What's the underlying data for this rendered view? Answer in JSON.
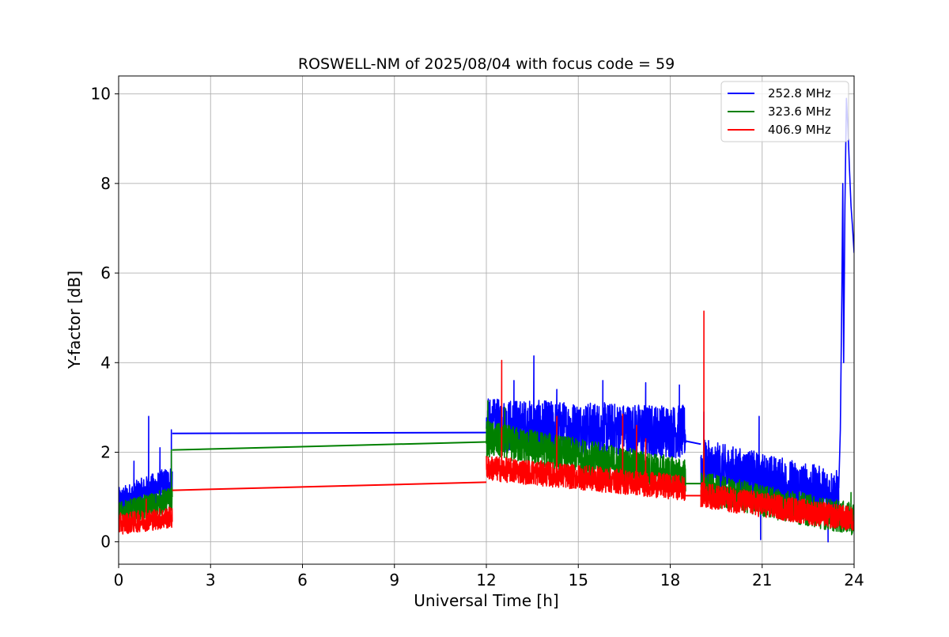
{
  "chart_data": {
    "type": "line",
    "title": "ROSWELL-NM of 2025/08/04 with focus code = 59",
    "xlabel": "Universal Time [h]",
    "ylabel": "Y-factor [dB]",
    "xlim": [
      0,
      24
    ],
    "ylim": [
      -0.5,
      10.4
    ],
    "xticks": [
      "0",
      "3",
      "6",
      "9",
      "12",
      "15",
      "18",
      "21",
      "24"
    ],
    "yticks": [
      "0",
      "2",
      "4",
      "6",
      "8",
      "10"
    ],
    "grid": true,
    "legend_position": "top-right",
    "series": [
      {
        "name": "252.8 MHz",
        "color": "#0000ff",
        "segments": [
          {
            "x_start": 0.0,
            "x_end": 1.75,
            "base_start": 0.85,
            "base_end": 1.35,
            "noise": 0.45,
            "spikes": [
              [
                0.98,
                2.8
              ],
              [
                0.5,
                1.8
              ],
              [
                1.35,
                2.1
              ],
              [
                1.72,
                2.5
              ]
            ]
          },
          {
            "x_start": 12.0,
            "x_end": 18.5,
            "base_start": 2.6,
            "base_end": 2.45,
            "noise": 0.75,
            "spikes": [
              [
                13.55,
                4.15
              ],
              [
                12.9,
                3.6
              ],
              [
                15.8,
                3.6
              ],
              [
                17.2,
                3.55
              ],
              [
                14.3,
                3.4
              ],
              [
                18.3,
                3.5
              ]
            ]
          },
          {
            "x_start": 19.0,
            "x_end": 23.5,
            "base_start": 1.7,
            "base_end": 1.0,
            "noise": 0.75,
            "spikes": [
              [
                20.9,
                2.8
              ],
              [
                19.1,
                2.9
              ],
              [
                20.95,
                0.05
              ],
              [
                23.15,
                0.0
              ]
            ]
          },
          {
            "x_start": 23.5,
            "x_end": 24.0,
            "points": [
              [
                23.5,
                1.2
              ],
              [
                23.55,
                2.5
              ],
              [
                23.6,
                5.5
              ],
              [
                23.63,
                8.0
              ],
              [
                23.66,
                4.0
              ],
              [
                23.7,
                7.5
              ],
              [
                23.75,
                9.9
              ],
              [
                23.8,
                9.2
              ],
              [
                23.85,
                8.3
              ],
              [
                23.9,
                7.5
              ],
              [
                23.95,
                7.0
              ],
              [
                24.0,
                6.45
              ]
            ]
          }
        ],
        "connectors": [
          [
            [
              1.75,
              2.42
            ],
            [
              12.0,
              2.44
            ]
          ],
          [
            [
              18.5,
              2.25
            ],
            [
              19.0,
              2.18
            ]
          ]
        ]
      },
      {
        "name": "323.6 MHz",
        "color": "#008000",
        "segments": [
          {
            "x_start": 0.0,
            "x_end": 1.75,
            "base_start": 0.6,
            "base_end": 0.95,
            "noise": 0.35,
            "spikes": [
              [
                1.72,
                2.05
              ]
            ]
          },
          {
            "x_start": 12.0,
            "x_end": 18.5,
            "base_start": 2.3,
            "base_end": 1.45,
            "noise": 0.5,
            "spikes": [
              [
                12.05,
                3.15
              ],
              [
                12.6,
                3.0
              ]
            ]
          },
          {
            "x_start": 19.0,
            "x_end": 24.0,
            "base_start": 1.2,
            "base_end": 0.5,
            "noise": 0.45,
            "spikes": [
              [
                19.1,
                2.3
              ],
              [
                23.9,
                1.1
              ]
            ]
          }
        ],
        "connectors": [
          [
            [
              1.75,
              2.05
            ],
            [
              12.0,
              2.23
            ]
          ],
          [
            [
              18.5,
              1.3
            ],
            [
              19.0,
              1.3
            ]
          ]
        ]
      },
      {
        "name": "406.9 MHz",
        "color": "#ff0000",
        "segments": [
          {
            "x_start": 0.0,
            "x_end": 1.75,
            "base_start": 0.4,
            "base_end": 0.55,
            "noise": 0.3,
            "spikes": [
              [
                0.9,
                0.95
              ]
            ]
          },
          {
            "x_start": 12.0,
            "x_end": 18.5,
            "base_start": 1.65,
            "base_end": 1.2,
            "noise": 0.35,
            "spikes": [
              [
                12.5,
                4.05
              ],
              [
                14.3,
                2.8
              ],
              [
                16.45,
                2.85
              ],
              [
                16.9,
                2.6
              ],
              [
                17.2,
                2.3
              ]
            ]
          },
          {
            "x_start": 19.0,
            "x_end": 24.0,
            "base_start": 1.05,
            "base_end": 0.5,
            "noise": 0.35,
            "spikes": [
              [
                19.1,
                5.15
              ]
            ]
          }
        ],
        "connectors": [
          [
            [
              1.75,
              1.15
            ],
            [
              12.0,
              1.33
            ]
          ],
          [
            [
              18.5,
              1.03
            ],
            [
              19.0,
              1.03
            ]
          ]
        ]
      }
    ]
  }
}
